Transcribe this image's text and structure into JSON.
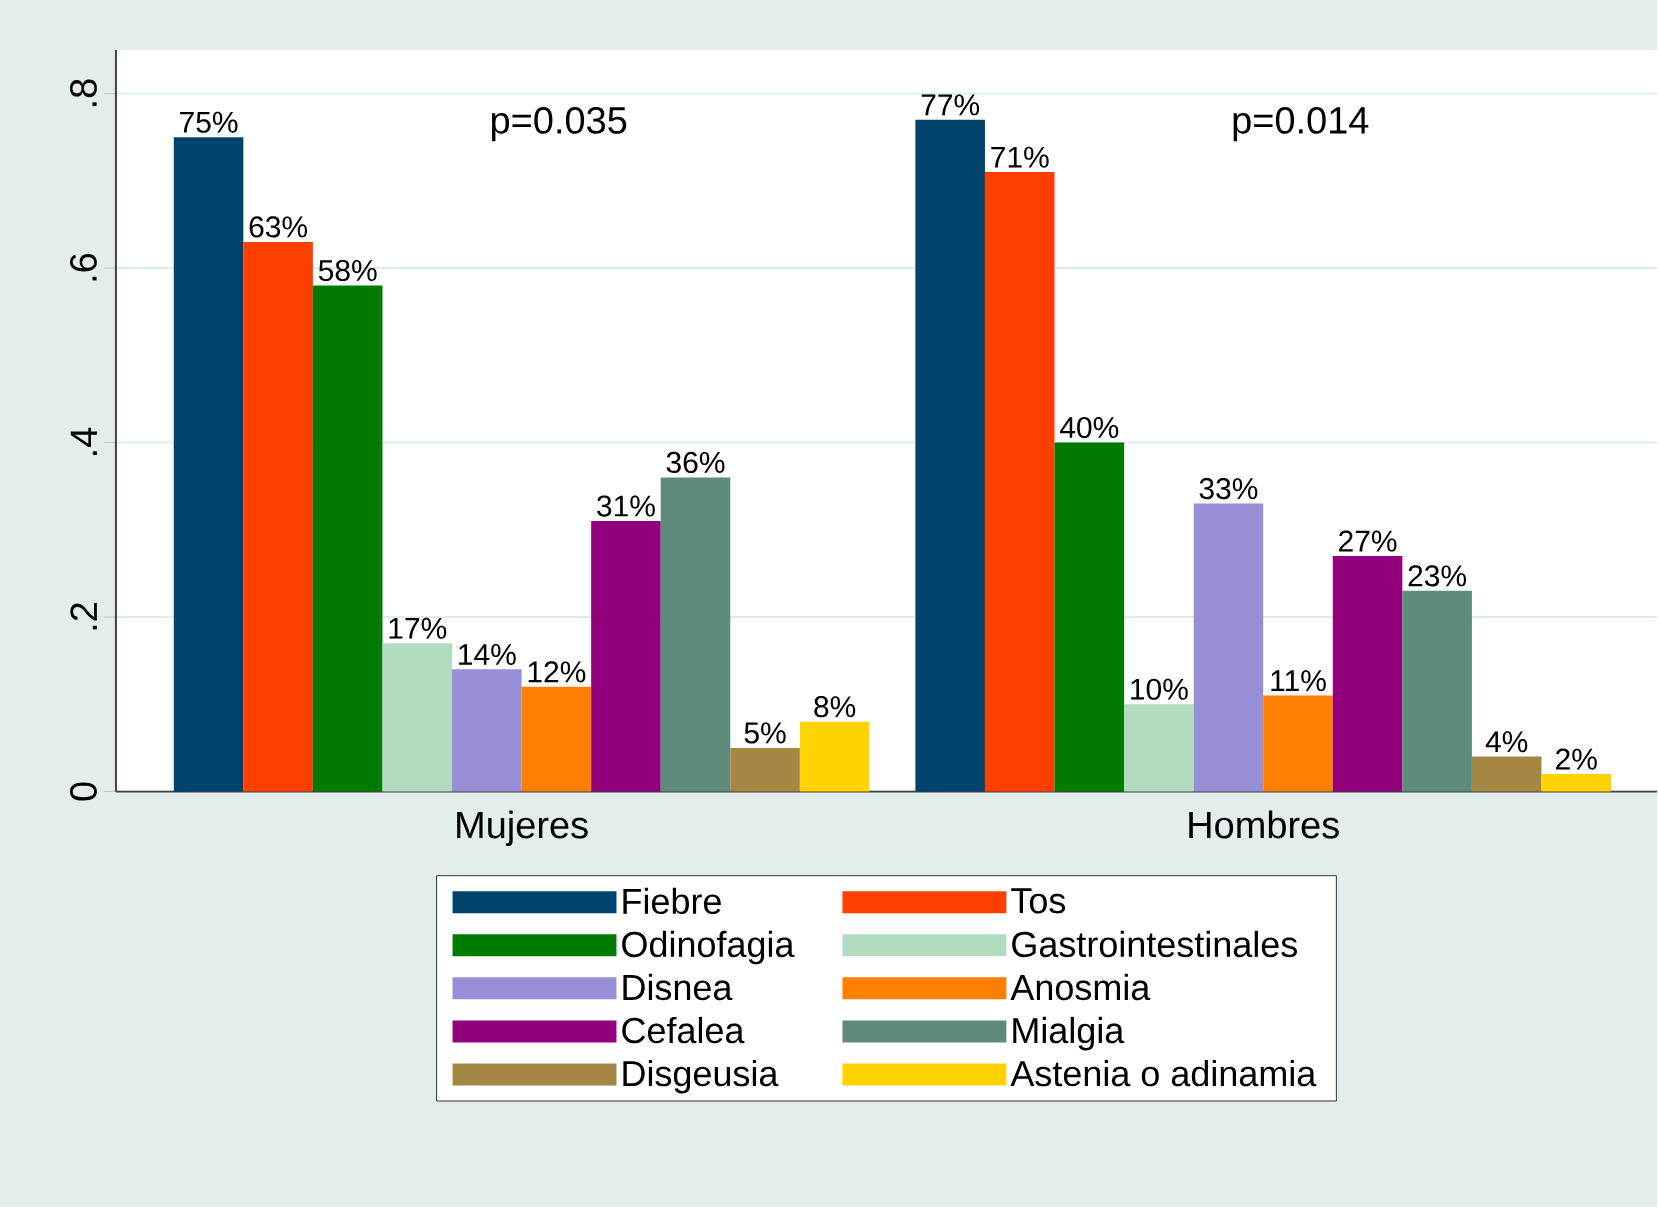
{
  "chart_data": {
    "type": "bar",
    "categories": [
      "Mujeres",
      "Hombres"
    ],
    "series": [
      {
        "name": "Fiebre",
        "color": "#00446e",
        "values": [
          0.75,
          0.77
        ],
        "value_labels": [
          "75%",
          "77%"
        ]
      },
      {
        "name": "Tos",
        "color": "#ff3f00",
        "values": [
          0.63,
          0.71
        ],
        "value_labels": [
          "63%",
          "71%"
        ]
      },
      {
        "name": "Odinofagia",
        "color": "#007a00",
        "values": [
          0.58,
          0.4
        ],
        "value_labels": [
          "58%",
          "40%"
        ]
      },
      {
        "name": "Gastrointestinales",
        "color": "#b2dcbf",
        "values": [
          0.17,
          0.1
        ],
        "value_labels": [
          "17%",
          "10%"
        ]
      },
      {
        "name": "Disnea",
        "color": "#978fd5",
        "values": [
          0.14,
          0.33
        ],
        "value_labels": [
          "14%",
          "33%"
        ]
      },
      {
        "name": "Anosmia",
        "color": "#ff7f00",
        "values": [
          0.12,
          0.11
        ],
        "value_labels": [
          "12%",
          "11%"
        ]
      },
      {
        "name": "Cefalea",
        "color": "#92007c",
        "values": [
          0.31,
          0.27
        ],
        "value_labels": [
          "31%",
          "27%"
        ]
      },
      {
        "name": "Mialgia",
        "color": "#5f8b7f",
        "values": [
          0.36,
          0.23
        ],
        "value_labels": [
          "36%",
          "23%"
        ]
      },
      {
        "name": "Disgeusia",
        "color": "#a38742",
        "values": [
          0.05,
          0.04
        ],
        "value_labels": [
          "5%",
          "4%"
        ]
      },
      {
        "name": "Astenia o adinamia",
        "color": "#ffd200",
        "values": [
          0.08,
          0.02
        ],
        "value_labels": [
          "8%",
          "2%"
        ]
      }
    ],
    "ylim": [
      0,
      0.85
    ],
    "yticks": [
      0,
      {
        "value": 0.2,
        "label": ".2"
      },
      {
        "value": 0.4,
        "label": ".4"
      },
      {
        "value": 0.6,
        "label": ".6"
      },
      {
        "value": 0.8,
        "label": ".8"
      }
    ],
    "grid": "y",
    "legend": "bottom",
    "annotations": [
      "p=0.035",
      "p=0.014"
    ]
  }
}
